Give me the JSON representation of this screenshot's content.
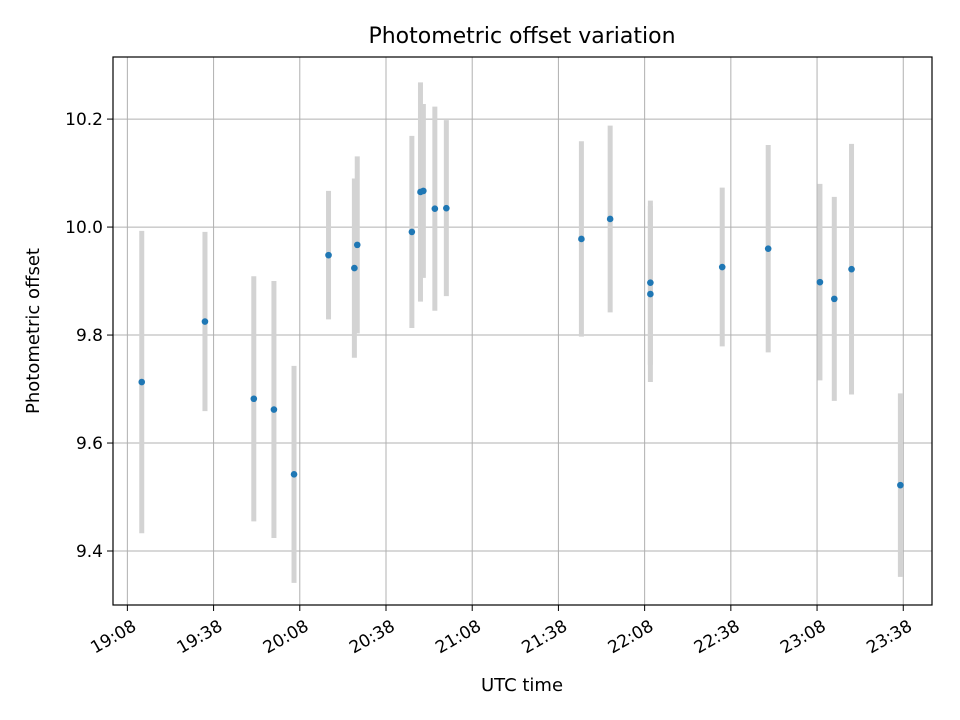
{
  "chart_data": {
    "type": "scatter",
    "title": "Photometric offset variation",
    "xlabel": "UTC time",
    "ylabel": "Photometric offset",
    "x_axis_kind": "time",
    "xlim": [
      "19:03",
      "23:48"
    ],
    "ylim": [
      9.3,
      10.315
    ],
    "grid": true,
    "legend": "none",
    "x_ticks": [
      "19:08",
      "19:38",
      "20:08",
      "20:38",
      "21:08",
      "21:38",
      "22:08",
      "22:38",
      "23:08",
      "23:38"
    ],
    "y_ticks": [
      9.4,
      9.6,
      9.8,
      10.0,
      10.2
    ],
    "y_tick_labels": [
      "9.4",
      "9.6",
      "9.8",
      "10.0",
      "10.2"
    ],
    "colors": {
      "point": "#1f77b4",
      "errorbar": "#d3d3d3",
      "grid": "#b0b0b0"
    },
    "points": [
      {
        "time": "19:13",
        "y": 9.713,
        "low": 9.433,
        "high": 9.993
      },
      {
        "time": "19:35",
        "y": 9.825,
        "low": 9.659,
        "high": 9.991
      },
      {
        "time": "19:52",
        "y": 9.682,
        "low": 9.455,
        "high": 9.909
      },
      {
        "time": "19:59",
        "y": 9.662,
        "low": 9.424,
        "high": 9.9
      },
      {
        "time": "20:06",
        "y": 9.542,
        "low": 9.341,
        "high": 9.743
      },
      {
        "time": "20:18",
        "y": 9.948,
        "low": 9.829,
        "high": 10.067
      },
      {
        "time": "20:27",
        "y": 9.924,
        "low": 9.758,
        "high": 10.09
      },
      {
        "time": "20:28",
        "y": 9.967,
        "low": 9.803,
        "high": 10.131
      },
      {
        "time": "20:47",
        "y": 9.991,
        "low": 9.813,
        "high": 10.169
      },
      {
        "time": "20:50",
        "y": 10.065,
        "low": 9.862,
        "high": 10.268
      },
      {
        "time": "20:51",
        "y": 10.067,
        "low": 9.906,
        "high": 10.228
      },
      {
        "time": "20:55",
        "y": 10.034,
        "low": 9.845,
        "high": 10.223
      },
      {
        "time": "20:59",
        "y": 10.035,
        "low": 9.872,
        "high": 10.198
      },
      {
        "time": "21:46",
        "y": 9.978,
        "low": 9.797,
        "high": 10.159
      },
      {
        "time": "21:56",
        "y": 10.015,
        "low": 9.842,
        "high": 10.188
      },
      {
        "time": "22:10",
        "y": 9.897,
        "low": 9.745,
        "high": 10.049
      },
      {
        "time": "22:10",
        "y": 9.876,
        "low": 9.713,
        "high": 10.039
      },
      {
        "time": "22:35",
        "y": 9.926,
        "low": 9.779,
        "high": 10.073
      },
      {
        "time": "22:51",
        "y": 9.96,
        "low": 9.768,
        "high": 10.152
      },
      {
        "time": "23:09",
        "y": 9.898,
        "low": 9.716,
        "high": 10.08
      },
      {
        "time": "23:14",
        "y": 9.867,
        "low": 9.678,
        "high": 10.056
      },
      {
        "time": "23:20",
        "y": 9.922,
        "low": 9.69,
        "high": 10.154
      },
      {
        "time": "23:37",
        "y": 9.522,
        "low": 9.352,
        "high": 9.692
      }
    ]
  }
}
